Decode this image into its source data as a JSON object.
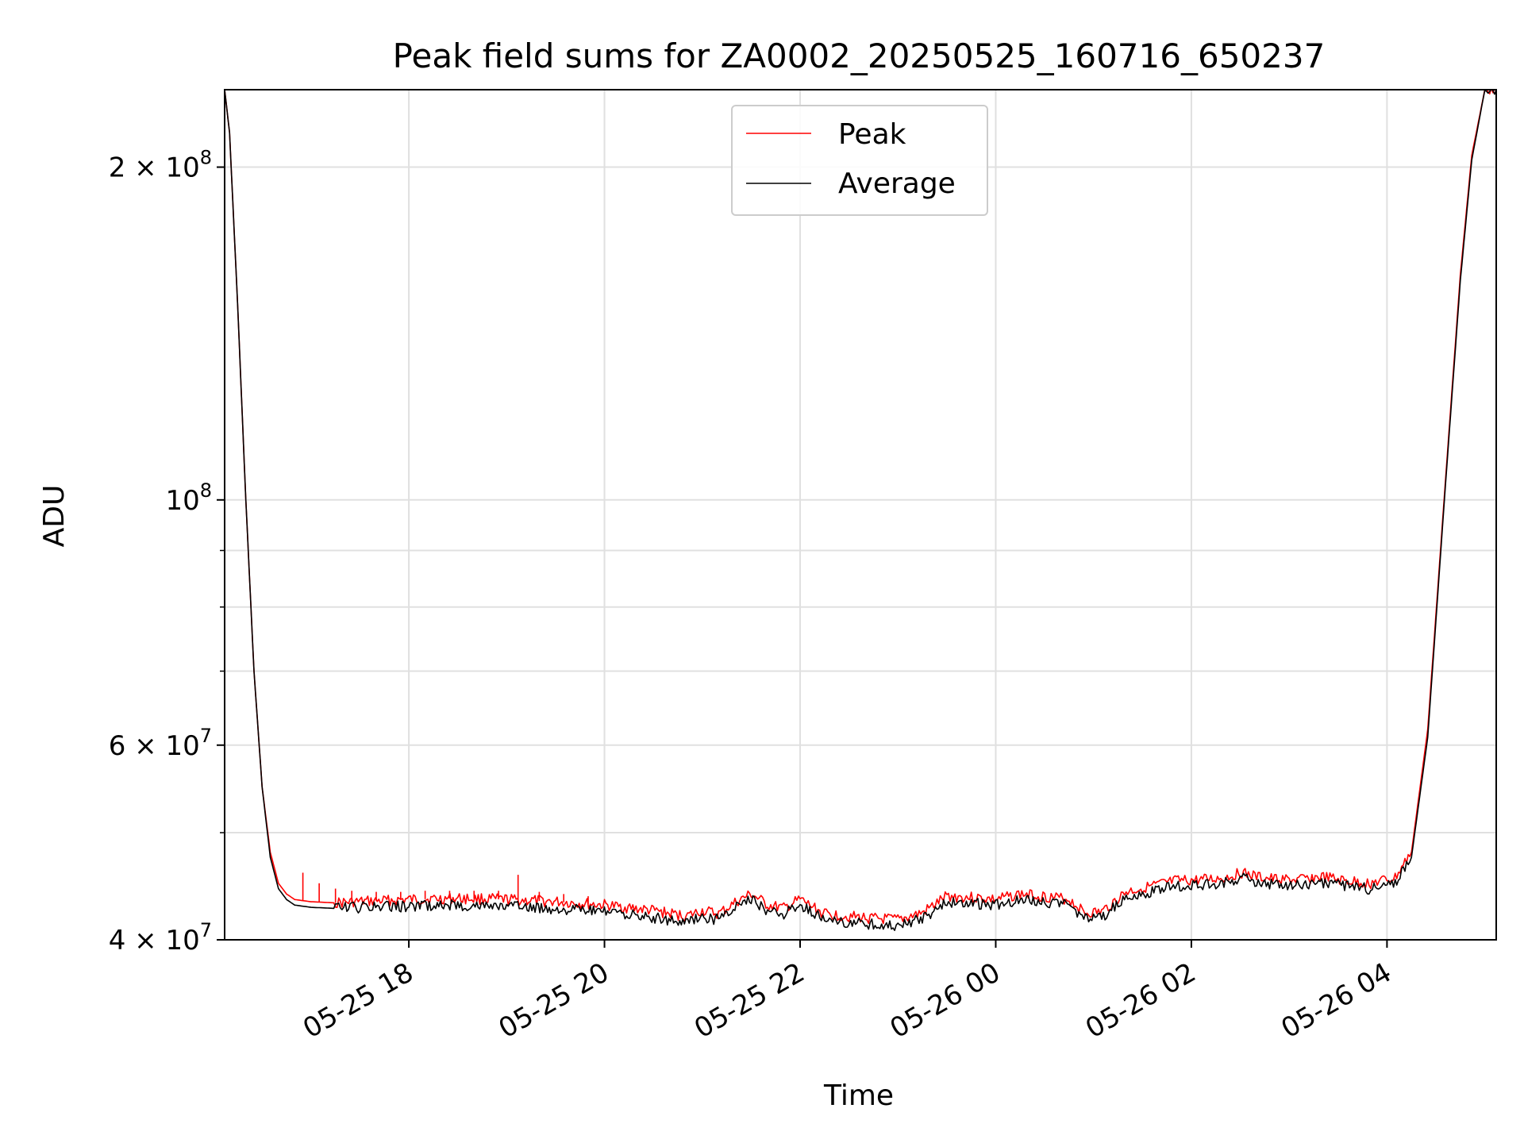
{
  "chart_data": {
    "type": "line",
    "title": "Peak field sums for ZA0002_20250525_160716_650237",
    "xlabel": "Time",
    "ylabel": "ADU",
    "x_range": [
      "2025-05-25 16:07",
      "2025-05-26 05:07"
    ],
    "ylim": [
      40000000,
      235000000
    ],
    "y_scale": "log",
    "grid": true,
    "legend_position": "top-center",
    "x_ticks": [
      {
        "value": "2025-05-25 18:00",
        "label": "05-25 18"
      },
      {
        "value": "2025-05-25 20:00",
        "label": "05-25 20"
      },
      {
        "value": "2025-05-25 22:00",
        "label": "05-25 22"
      },
      {
        "value": "2025-05-26 00:00",
        "label": "05-26 00"
      },
      {
        "value": "2025-05-26 02:00",
        "label": "05-26 02"
      },
      {
        "value": "2025-05-26 04:00",
        "label": "05-26 04"
      }
    ],
    "y_ticks": [
      {
        "value": 40000000,
        "base": "4 × 10",
        "exp": "7"
      },
      {
        "value": 60000000,
        "base": "6 × 10",
        "exp": "7"
      },
      {
        "value": 100000000,
        "base": "10",
        "exp": "8"
      },
      {
        "value": 200000000,
        "base": "2 × 10",
        "exp": "8"
      }
    ],
    "y_minor_ticks": [
      50000000,
      70000000,
      80000000,
      90000000
    ],
    "series": [
      {
        "name": "Peak",
        "color": "#ff0000",
        "x": [
          "2025-05-25 16:07",
          "2025-05-25 16:10",
          "2025-05-25 16:15",
          "2025-05-25 16:20",
          "2025-05-25 16:25",
          "2025-05-25 16:30",
          "2025-05-25 16:35",
          "2025-05-25 16:40",
          "2025-05-25 16:45",
          "2025-05-25 16:50",
          "2025-05-25 17:00",
          "2025-05-25 17:15",
          "2025-05-25 17:30",
          "2025-05-25 18:00",
          "2025-05-25 18:30",
          "2025-05-25 19:00",
          "2025-05-25 19:30",
          "2025-05-25 20:00",
          "2025-05-25 20:30",
          "2025-05-25 20:50",
          "2025-05-25 21:00",
          "2025-05-25 21:10",
          "2025-05-25 21:20",
          "2025-05-25 21:30",
          "2025-05-25 21:40",
          "2025-05-25 21:50",
          "2025-05-25 22:00",
          "2025-05-25 22:15",
          "2025-05-25 22:30",
          "2025-05-25 22:45",
          "2025-05-25 23:00",
          "2025-05-25 23:15",
          "2025-05-25 23:30",
          "2025-05-25 23:45",
          "2025-05-26 00:00",
          "2025-05-26 00:15",
          "2025-05-26 00:30",
          "2025-05-26 00:45",
          "2025-05-26 00:55",
          "2025-05-26 01:05",
          "2025-05-26 01:20",
          "2025-05-26 01:35",
          "2025-05-26 01:50",
          "2025-05-26 02:05",
          "2025-05-26 02:20",
          "2025-05-26 02:30",
          "2025-05-26 02:40",
          "2025-05-26 02:50",
          "2025-05-26 03:05",
          "2025-05-26 03:20",
          "2025-05-26 03:35",
          "2025-05-26 03:50",
          "2025-05-26 04:05",
          "2025-05-26 04:15",
          "2025-05-26 04:25",
          "2025-05-26 04:35",
          "2025-05-26 04:45",
          "2025-05-26 04:52",
          "2025-05-26 05:00",
          "2025-05-26 05:07"
        ],
        "y": [
          235000000,
          215000000,
          150000000,
          100000000,
          70000000,
          55000000,
          48000000,
          45000000,
          44000000,
          43500000,
          43300000,
          43200000,
          43300000,
          43500000,
          43600000,
          43500000,
          43300000,
          43000000,
          42500000,
          42000000,
          42500000,
          42200000,
          43200000,
          44000000,
          43000000,
          42700000,
          43500000,
          42200000,
          42000000,
          41800000,
          41700000,
          42300000,
          43800000,
          43700000,
          43500000,
          44000000,
          43800000,
          43500000,
          42300000,
          42400000,
          44200000,
          44700000,
          45200000,
          45300000,
          45500000,
          46000000,
          45600000,
          45400000,
          45300000,
          45600000,
          45200000,
          45000000,
          45500000,
          48000000,
          62000000,
          100000000,
          160000000,
          205000000,
          235000000,
          235000000
        ]
      },
      {
        "name": "Average",
        "color": "#000000",
        "x": [
          "2025-05-25 16:07",
          "2025-05-25 16:10",
          "2025-05-25 16:15",
          "2025-05-25 16:20",
          "2025-05-25 16:25",
          "2025-05-25 16:30",
          "2025-05-25 16:35",
          "2025-05-25 16:40",
          "2025-05-25 16:45",
          "2025-05-25 16:50",
          "2025-05-25 17:00",
          "2025-05-25 17:15",
          "2025-05-25 17:30",
          "2025-05-25 18:00",
          "2025-05-25 18:30",
          "2025-05-25 19:00",
          "2025-05-25 19:30",
          "2025-05-25 20:00",
          "2025-05-25 20:30",
          "2025-05-25 20:50",
          "2025-05-25 21:00",
          "2025-05-25 21:10",
          "2025-05-25 21:20",
          "2025-05-25 21:30",
          "2025-05-25 21:40",
          "2025-05-25 21:50",
          "2025-05-25 22:00",
          "2025-05-25 22:15",
          "2025-05-25 22:30",
          "2025-05-25 22:45",
          "2025-05-25 23:00",
          "2025-05-25 23:15",
          "2025-05-25 23:30",
          "2025-05-25 23:45",
          "2025-05-26 00:00",
          "2025-05-26 00:15",
          "2025-05-26 00:30",
          "2025-05-26 00:45",
          "2025-05-26 00:55",
          "2025-05-26 01:05",
          "2025-05-26 01:20",
          "2025-05-26 01:35",
          "2025-05-26 01:50",
          "2025-05-26 02:05",
          "2025-05-26 02:20",
          "2025-05-26 02:30",
          "2025-05-26 02:40",
          "2025-05-26 02:50",
          "2025-05-26 03:05",
          "2025-05-26 03:20",
          "2025-05-26 03:35",
          "2025-05-26 03:50",
          "2025-05-26 04:05",
          "2025-05-26 04:15",
          "2025-05-26 04:25",
          "2025-05-26 04:35",
          "2025-05-26 04:45",
          "2025-05-26 04:52",
          "2025-05-26 05:00",
          "2025-05-26 05:07"
        ],
        "y": [
          235000000,
          215000000,
          150000000,
          100000000,
          70000000,
          55000000,
          47500000,
          44500000,
          43500000,
          43000000,
          42800000,
          42700000,
          42800000,
          42900000,
          43000000,
          42900000,
          42700000,
          42400000,
          41900000,
          41500000,
          42000000,
          41700000,
          42700000,
          43500000,
          42500000,
          42200000,
          43000000,
          41700000,
          41500000,
          41300000,
          41200000,
          41800000,
          43300000,
          43200000,
          43000000,
          43500000,
          43300000,
          43000000,
          41800000,
          41900000,
          43700000,
          44200000,
          44700000,
          44800000,
          45000000,
          45500000,
          45100000,
          44900000,
          44800000,
          45100000,
          44700000,
          44500000,
          45000000,
          47500000,
          61000000,
          99000000,
          158000000,
          203000000,
          235000000,
          235000000
        ]
      }
    ],
    "spikes": {
      "color": "#ff0000",
      "x": [
        "2025-05-25 16:55",
        "2025-05-25 17:05",
        "2025-05-25 17:15",
        "2025-05-25 17:25",
        "2025-05-25 17:40",
        "2025-05-25 17:55",
        "2025-05-25 18:10",
        "2025-05-25 18:25",
        "2025-05-25 18:40",
        "2025-05-25 18:55",
        "2025-05-25 19:07",
        "2025-05-25 19:20",
        "2025-05-25 19:35",
        "2025-05-25 19:50"
      ],
      "y": [
        46000000,
        45000000,
        44500000,
        44300000,
        44200000,
        44200000,
        44300000,
        44300000,
        44300000,
        44300000,
        45800000,
        44200000,
        44000000,
        43800000
      ]
    }
  }
}
